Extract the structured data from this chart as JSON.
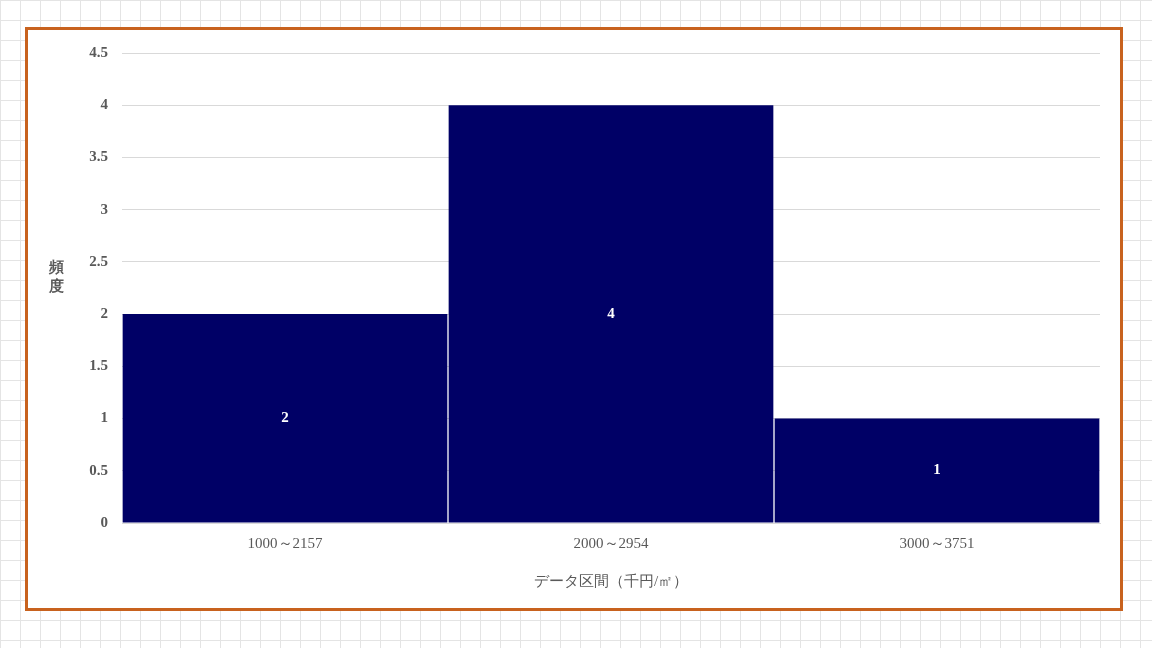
{
  "chart_data": {
    "type": "bar",
    "categories": [
      "1000～2157",
      "2000～2954",
      "3000～3751"
    ],
    "values": [
      2,
      4,
      1
    ],
    "color": "#000066",
    "xlabel": "データ区間（千円/㎡）",
    "ylabel": "頻度",
    "ylim": [
      0,
      4.5
    ],
    "yticks": [
      0,
      0.5,
      1,
      1.5,
      2,
      2.5,
      3,
      3.5,
      4,
      4.5
    ],
    "grid": "y",
    "data_labels": true
  }
}
